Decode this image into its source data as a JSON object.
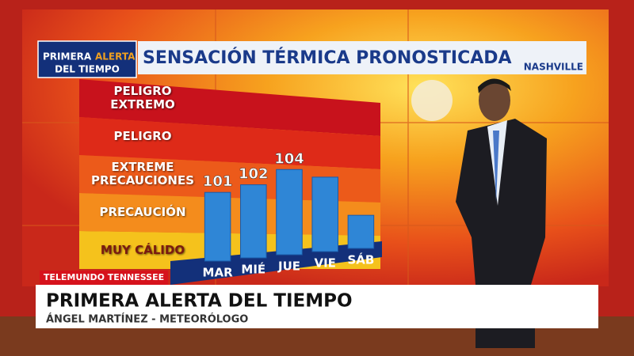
{
  "chart_data": {
    "type": "bar",
    "title": "SENSACIÓN TÉRMICA PRONOSTICADA",
    "location": "NASHVILLE",
    "categories": [
      "MAR",
      "MIÉ",
      "JUE",
      "VIE",
      "SÁB"
    ],
    "values": [
      101,
      102,
      104,
      103,
      98
    ],
    "value_labels": [
      "101",
      "102",
      "104",
      null,
      null
    ],
    "color": "#2f86d6",
    "ylim": [
      92,
      106
    ],
    "bands": [
      {
        "label": "PELIGRO EXTREMO",
        "color": "#c8121c"
      },
      {
        "label": "PELIGRO",
        "color": "#de2a18"
      },
      {
        "label": "EXTREME PRECAUCIONES",
        "color": "#ec5a1a"
      },
      {
        "label": "PRECAUCIÓN",
        "color": "#f48c1c"
      },
      {
        "label": "MUY CÁLIDO",
        "color": "#f5c21c"
      }
    ]
  },
  "logo": {
    "line1": "PRIMERA",
    "line2": "ALERTA",
    "line3": "DEL TIEMPO"
  },
  "lower_third": {
    "station": "TELEMUNDO TENNESSEE",
    "title": "PRIMERA ALERTA DEL TIEMPO",
    "subtitle": "ÁNGEL MARTÍNEZ - METEORÓLOGO"
  }
}
